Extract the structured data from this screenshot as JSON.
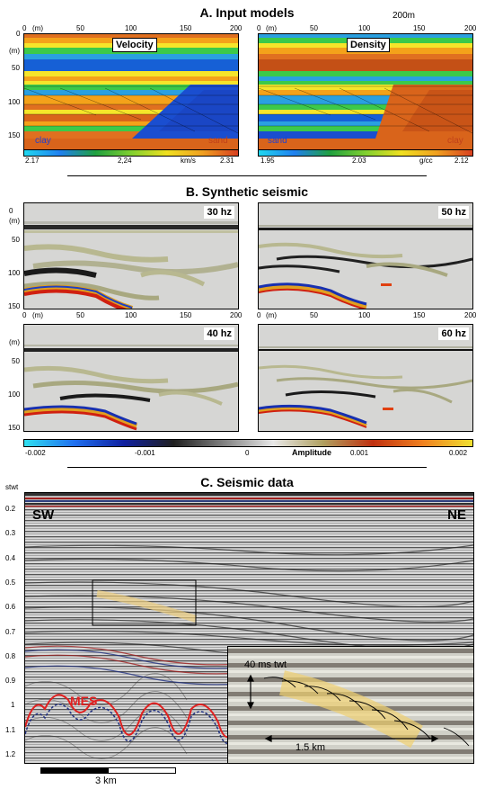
{
  "sectionA": {
    "title": "A. Input models",
    "scale_label": "200m",
    "velocity": {
      "title": "Velocity",
      "left_lith": "clay",
      "right_lith": "sand",
      "cbar": {
        "min": "2.17",
        "mid": "2,24",
        "unit": "km/s",
        "max": "2.31"
      }
    },
    "density": {
      "title": "Density",
      "left_lith": "sand",
      "right_lith": "clay",
      "cbar": {
        "min": "1.95",
        "mid": "2.03",
        "unit": "g/cc",
        "max": "2.12"
      }
    }
  },
  "sectionB": {
    "title": "B. Synthetic seismic",
    "panels": [
      {
        "label": "30 hz"
      },
      {
        "label": "50 hz"
      },
      {
        "label": "40 hz"
      },
      {
        "label": "60 hz"
      }
    ],
    "amplitude": {
      "label": "Amplitude",
      "ticks": [
        "-0.002",
        "-0.001",
        "0",
        "0.001",
        "0.002"
      ]
    }
  },
  "axes": {
    "x_unit": "(m)",
    "x_ticks": [
      "0",
      "50",
      "100",
      "150",
      "200"
    ],
    "y_unit": "(m)",
    "y_ticks_a": [
      "0",
      "50",
      "100",
      "150"
    ],
    "y_ticks_b": [
      "50",
      "100",
      "150"
    ]
  },
  "sectionC": {
    "title": "C. Seismic data",
    "axis_label": "stwt",
    "twt_ticks": [
      "0.2",
      "0.3",
      "0.4",
      "0.5",
      "0.6",
      "0.7",
      "0.8",
      "0.9",
      "1",
      "1.1",
      "1.2"
    ],
    "sw": "SW",
    "ne": "NE",
    "mes": "MES",
    "inset_vertical": "40 ms twt",
    "inset_horizontal": "1.5 km",
    "scalebar": "3 km"
  }
}
